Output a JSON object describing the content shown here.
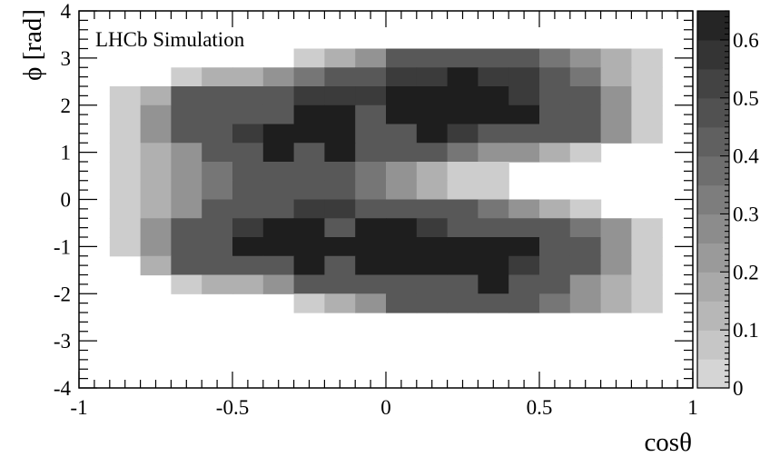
{
  "chart_data": {
    "type": "heatmap",
    "title": "",
    "annotation": "LHCb Simulation",
    "xlabel": "cosθ",
    "ylabel": "ϕ [rad]",
    "xlim": [
      -1,
      1
    ],
    "ylim": [
      -4,
      4
    ],
    "x_ticks": [
      "-1",
      "-0.5",
      "0",
      "0.5",
      "1"
    ],
    "y_ticks": [
      "-4",
      "-3",
      "-2",
      "-1",
      "0",
      "1",
      "2",
      "3",
      "4"
    ],
    "colorbar": {
      "zlim": [
        0,
        0.65
      ],
      "ticks": [
        "0",
        "0.1",
        "0.2",
        "0.3",
        "0.4",
        "0.5",
        "0.6"
      ]
    },
    "x_edges": [
      -0.9,
      -0.8,
      -0.7,
      -0.6,
      -0.5,
      -0.4,
      -0.3,
      -0.2,
      -0.1,
      0.0,
      0.1,
      0.2,
      0.3,
      0.4,
      0.5,
      0.6,
      0.7,
      0.8,
      0.9
    ],
    "y_edges": [
      -3.2,
      -2.8,
      -2.4,
      -2.0,
      -1.6,
      -1.2,
      -0.8,
      -0.4,
      0.0,
      0.4,
      0.8,
      1.2,
      1.6,
      2.0,
      2.4,
      2.8,
      3.2
    ],
    "z_rows_top_to_bottom": [
      [
        null,
        null,
        null,
        null,
        null,
        null,
        0.05,
        0.15,
        0.25,
        0.45,
        0.45,
        0.45,
        0.45,
        0.45,
        0.35,
        0.25,
        0.15,
        0.05
      ],
      [
        null,
        null,
        0.05,
        0.15,
        0.15,
        0.25,
        0.35,
        0.45,
        0.45,
        0.55,
        0.55,
        0.65,
        0.55,
        0.55,
        0.45,
        0.35,
        0.15,
        0.05
      ],
      [
        0.05,
        0.15,
        0.45,
        0.45,
        0.45,
        0.45,
        0.55,
        0.55,
        0.55,
        0.65,
        0.65,
        0.65,
        0.65,
        0.55,
        0.45,
        0.45,
        0.25,
        0.05
      ],
      [
        0.05,
        0.25,
        0.45,
        0.45,
        0.45,
        0.45,
        0.65,
        0.65,
        0.45,
        0.65,
        0.65,
        0.65,
        0.65,
        0.65,
        0.45,
        0.45,
        0.25,
        0.05
      ],
      [
        0.05,
        0.25,
        0.45,
        0.45,
        0.55,
        0.65,
        0.65,
        0.65,
        0.45,
        0.45,
        0.65,
        0.55,
        0.45,
        0.45,
        0.45,
        0.45,
        0.25,
        0.05
      ],
      [
        0.05,
        0.15,
        0.25,
        0.45,
        0.45,
        0.65,
        0.45,
        0.65,
        0.45,
        0.45,
        0.45,
        0.35,
        0.25,
        0.25,
        0.15,
        0.05,
        null,
        null
      ],
      [
        0.05,
        0.15,
        0.25,
        0.35,
        0.45,
        0.45,
        0.45,
        0.45,
        0.35,
        0.25,
        0.15,
        0.05,
        0.05,
        null,
        null,
        null,
        null,
        null
      ],
      [
        0.05,
        0.15,
        0.25,
        0.35,
        0.45,
        0.45,
        0.45,
        0.45,
        0.35,
        0.25,
        0.15,
        0.05,
        0.05,
        null,
        null,
        null,
        null,
        null
      ],
      [
        0.05,
        0.15,
        0.25,
        0.45,
        0.45,
        0.45,
        0.55,
        0.55,
        0.45,
        0.45,
        0.45,
        0.45,
        0.35,
        0.25,
        0.15,
        0.05,
        null,
        null
      ],
      [
        0.05,
        0.25,
        0.45,
        0.45,
        0.55,
        0.65,
        0.65,
        0.45,
        0.65,
        0.65,
        0.55,
        0.45,
        0.45,
        0.45,
        0.45,
        0.35,
        0.25,
        0.05
      ],
      [
        0.05,
        0.25,
        0.45,
        0.45,
        0.65,
        0.65,
        0.65,
        0.65,
        0.65,
        0.65,
        0.65,
        0.65,
        0.65,
        0.65,
        0.45,
        0.45,
        0.25,
        0.05
      ],
      [
        null,
        0.15,
        0.45,
        0.45,
        0.45,
        0.45,
        0.65,
        0.45,
        0.65,
        0.65,
        0.65,
        0.65,
        0.65,
        0.55,
        0.45,
        0.45,
        0.25,
        0.05
      ],
      [
        null,
        null,
        0.05,
        0.15,
        0.15,
        0.25,
        0.45,
        0.45,
        0.45,
        0.45,
        0.45,
        0.45,
        0.65,
        0.45,
        0.45,
        0.25,
        0.15,
        0.05
      ],
      [
        null,
        null,
        null,
        null,
        null,
        null,
        0.05,
        0.15,
        0.25,
        0.45,
        0.45,
        0.45,
        0.45,
        0.45,
        0.35,
        0.25,
        0.15,
        0.05
      ],
      [
        null,
        null,
        null,
        null,
        null,
        null,
        null,
        null,
        null,
        null,
        null,
        null,
        null,
        null,
        null,
        null,
        null,
        null
      ],
      [
        null,
        null,
        null,
        null,
        null,
        null,
        null,
        null,
        null,
        null,
        null,
        null,
        null,
        null,
        null,
        null,
        null,
        null
      ]
    ]
  }
}
